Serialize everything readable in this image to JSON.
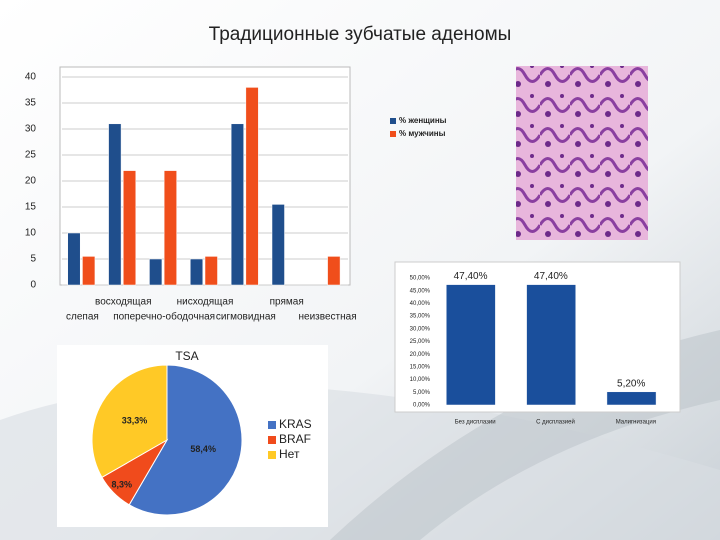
{
  "title": "Традиционные зубчатые аденомы",
  "chart_data": [
    {
      "type": "bar",
      "categories": [
        "слепая",
        "восходящая",
        "поперечно-ободочная",
        "нисходящая",
        "сигмовидная",
        "прямая",
        "неизвестная"
      ],
      "series": [
        {
          "name": "% женщины",
          "color": "#1f4e8c",
          "values": [
            10,
            31,
            5,
            5,
            31,
            15.5,
            0
          ]
        },
        {
          "name": "% мужчины",
          "color": "#f04e1b",
          "values": [
            5.5,
            22,
            22,
            5.5,
            38,
            0,
            5.5
          ]
        }
      ],
      "ylim": [
        0,
        40
      ],
      "yticks": [
        0,
        5,
        10,
        15,
        20,
        25,
        30,
        35,
        40
      ],
      "grid": true
    },
    {
      "type": "bar",
      "categories": [
        "Без дисплазии",
        "С дисплазией",
        "Малигнизация"
      ],
      "values": [
        47.4,
        47.4,
        5.2
      ],
      "value_labels": [
        "47,40%",
        "47,40%",
        "5,20%"
      ],
      "color": "#1a4f9c",
      "ylim": [
        0,
        50
      ],
      "yticks": [
        {
          "value": 0,
          "label": "0,00%"
        },
        {
          "value": 5,
          "label": "5,00%"
        },
        {
          "value": 10,
          "label": "10,00%"
        },
        {
          "value": 15,
          "label": "15,00%"
        },
        {
          "value": 20,
          "label": "20,00%"
        },
        {
          "value": 25,
          "label": "25,00%"
        },
        {
          "value": 30,
          "label": "30,00%"
        },
        {
          "value": 35,
          "label": "35,00%"
        },
        {
          "value": 40,
          "label": "40,00%"
        },
        {
          "value": 45,
          "label": "45,00%"
        },
        {
          "value": 50,
          "label": "50,00%"
        }
      ],
      "grid": false
    },
    {
      "type": "pie",
      "title": "TSA",
      "categories": [
        "KRAS",
        "BRAF",
        "Нет"
      ],
      "values": [
        58.4,
        8.3,
        33.3
      ],
      "value_labels": [
        "58,4%",
        "8,3%",
        "33,3%"
      ],
      "colors": [
        "#4472c4",
        "#f04b1c",
        "#ffc926"
      ]
    }
  ]
}
